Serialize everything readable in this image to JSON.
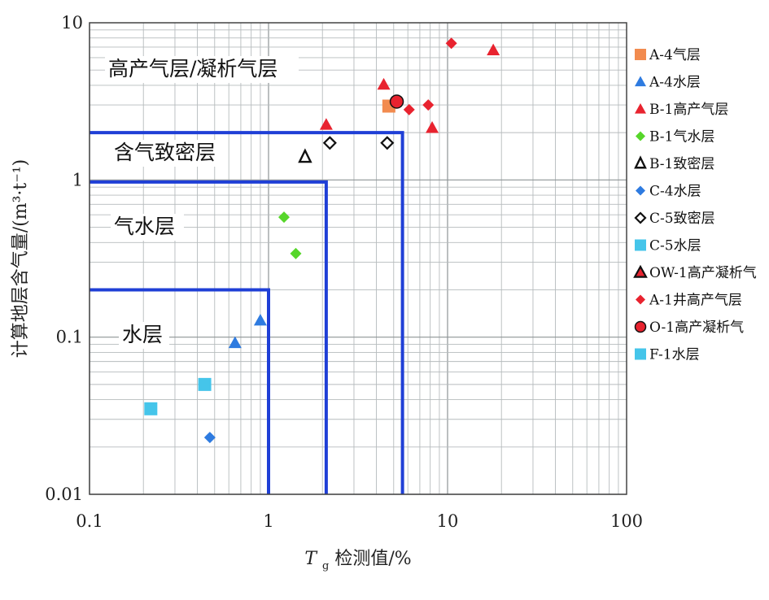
{
  "chart_data": {
    "type": "scatter",
    "x_scale": "log",
    "y_scale": "log",
    "xlim": [
      0.1,
      100
    ],
    "ylim": [
      0.01,
      10
    ],
    "x_ticks": [
      "0.1",
      "1",
      "10",
      "100"
    ],
    "y_ticks": [
      "0.01",
      "0.1",
      "1",
      "10"
    ],
    "xlabel_main": "T",
    "xlabel_sub": "g",
    "xlabel_rest": "检测值/%",
    "ylabel": "计算地层含气量/(m³·t⁻¹)",
    "grid": true,
    "legend_position": "right",
    "zones": [
      {
        "label": "高产气层/凝析气层",
        "x_max": null,
        "y_max": null
      },
      {
        "label": "含气致密层",
        "x_max": 5.6,
        "y_max": 2.0
      },
      {
        "label": "气水层",
        "x_max": 2.1,
        "y_max": 0.97
      },
      {
        "label": "水层",
        "x_max": 1.0,
        "y_max": 0.2
      }
    ],
    "zone_line_color": "#1f3fd6",
    "series": [
      {
        "name": "A-4气层",
        "marker": "square",
        "color": "#f28b4f",
        "points": [
          [
            4.7,
            2.95
          ]
        ]
      },
      {
        "name": "A-4水层",
        "marker": "triangle",
        "color": "#2e7be0",
        "points": [
          [
            0.65,
            0.092
          ],
          [
            0.9,
            0.128
          ]
        ]
      },
      {
        "name": "B-1高产气层",
        "marker": "triangle",
        "color": "#e8232f",
        "points": [
          [
            2.1,
            2.25
          ],
          [
            4.4,
            4.05
          ],
          [
            8.2,
            2.15
          ],
          [
            18.0,
            6.7
          ]
        ]
      },
      {
        "name": "B-1气水层",
        "marker": "diamond",
        "color": "#56d62a",
        "points": [
          [
            1.22,
            0.58
          ],
          [
            1.42,
            0.34
          ]
        ]
      },
      {
        "name": "B-1致密层",
        "marker": "triangle-open",
        "color": "#111111",
        "points": [
          [
            1.6,
            1.4
          ]
        ]
      },
      {
        "name": "C-4水层",
        "marker": "diamond",
        "color": "#2e7be0",
        "points": [
          [
            0.47,
            0.023
          ]
        ]
      },
      {
        "name": "C-5致密层",
        "marker": "diamond-open",
        "color": "#111111",
        "points": [
          [
            2.2,
            1.72
          ],
          [
            4.6,
            1.72
          ]
        ]
      },
      {
        "name": "C-5水层",
        "marker": "square",
        "color": "#45c5ea",
        "points": [
          [
            0.44,
            0.05
          ]
        ]
      },
      {
        "name": "OW-1高产凝析气",
        "marker": "triangle-dark",
        "color": "#e8232f",
        "points": []
      },
      {
        "name": "A-1井高产气层",
        "marker": "diamond",
        "color": "#e8232f",
        "points": [
          [
            6.1,
            2.8
          ],
          [
            7.8,
            3.0
          ],
          [
            10.5,
            7.4
          ]
        ]
      },
      {
        "name": "O-1高产凝析气",
        "marker": "circle",
        "color": "#e8232f",
        "points": [
          [
            5.2,
            3.15
          ]
        ]
      },
      {
        "name": "F-1水层",
        "marker": "square",
        "color": "#45c5ea",
        "points": [
          [
            0.22,
            0.035
          ]
        ]
      }
    ]
  }
}
